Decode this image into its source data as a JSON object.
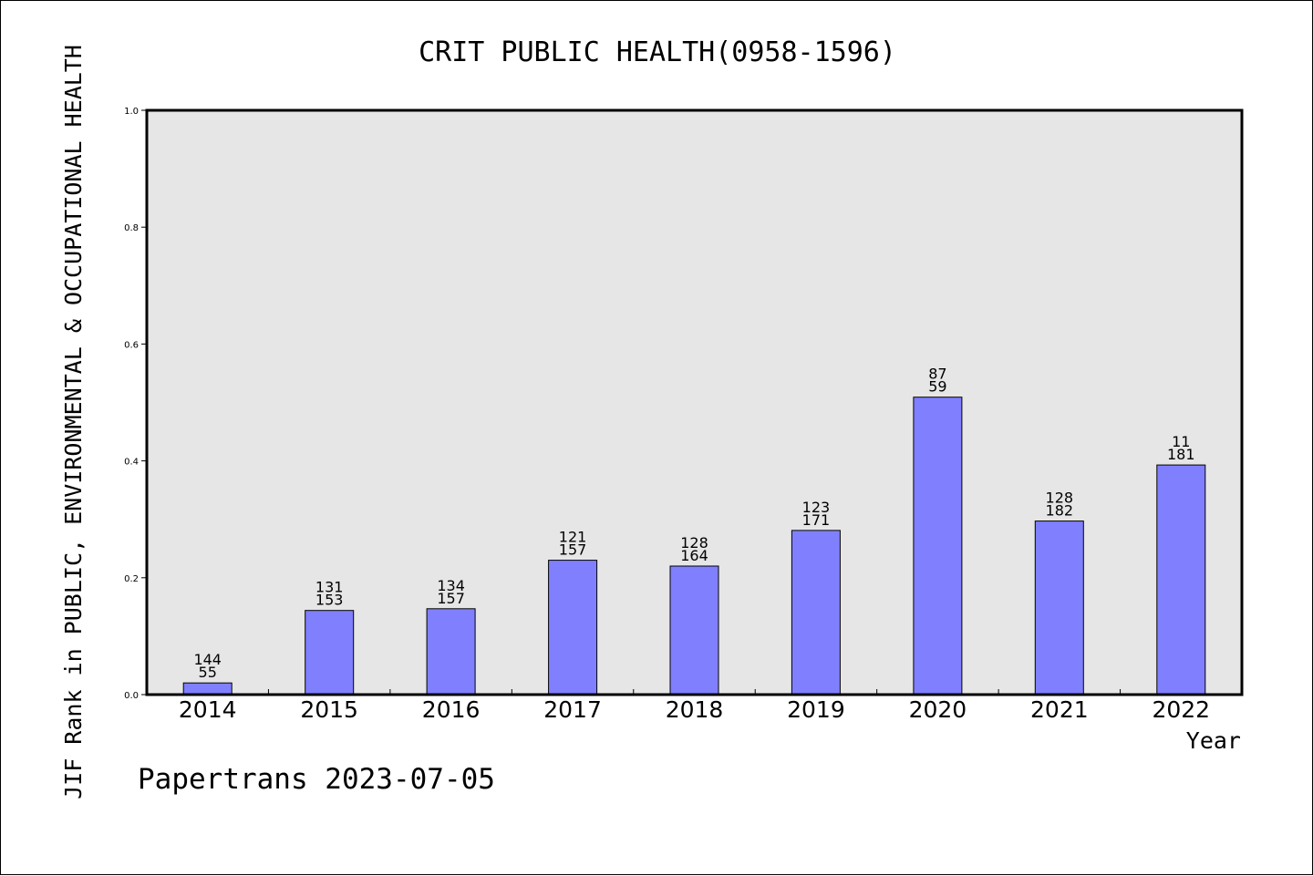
{
  "chart_data": {
    "type": "bar",
    "title": "CRIT PUBLIC HEALTH(0958-1596)",
    "xlabel": "Year",
    "ylabel": "JIF Rank in PUBLIC, ENVIRONMENTAL & OCCUPATIONAL HEALTH",
    "ylim": [
      0,
      1.0
    ],
    "yticks": [
      "0.0",
      "0.2",
      "0.4",
      "0.6",
      "0.8",
      "1.0"
    ],
    "grid": false,
    "categories": [
      "2014",
      "2015",
      "2016",
      "2017",
      "2018",
      "2019",
      "2020",
      "2021",
      "2022"
    ],
    "values": [
      0.02,
      0.144,
      0.147,
      0.23,
      0.22,
      0.281,
      0.509,
      0.297,
      0.393
    ],
    "labels_top": [
      "144",
      "131",
      "134",
      "121",
      "128",
      "123",
      "87",
      "128",
      "11"
    ],
    "labels_bottom": [
      "55",
      "153",
      "157",
      "157",
      "164",
      "171",
      "59",
      "182",
      "181"
    ],
    "colors": {
      "bar": "#8080ff",
      "plot_bg": "#e6e6e6"
    }
  },
  "footer": "Papertrans 2023-07-05"
}
